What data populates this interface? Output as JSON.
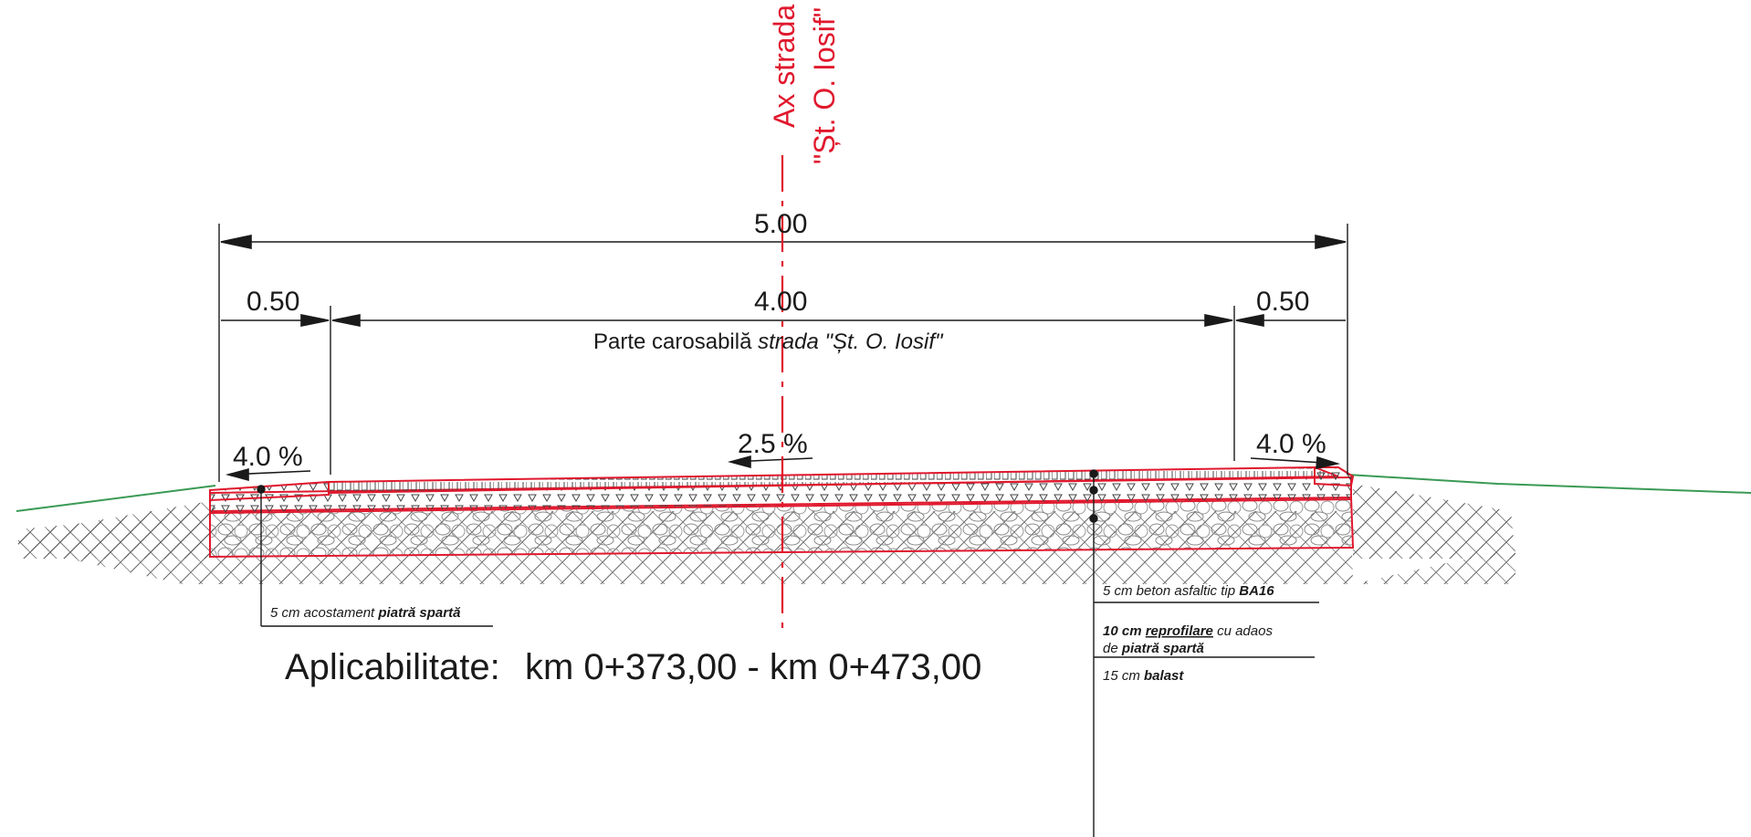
{
  "axis_label": {
    "line1": "Ax strada",
    "line2": "\"Șt. O. Iosif\""
  },
  "dimensions": {
    "total_width": "5.00",
    "left_shoulder": "0.50",
    "carriageway": "4.00",
    "right_shoulder": "0.50",
    "carriageway_label_prefix": "Parte carosabilă ",
    "carriageway_label_street": "strada \"Șt. O. Iosif\""
  },
  "slopes": {
    "left": "4.0 %",
    "center": "2.5 %",
    "right": "4.0 %"
  },
  "layers": {
    "shoulder_note": {
      "prefix": "5 cm acostament ",
      "material": "piatră spartă"
    },
    "wearing_course": {
      "prefix": "5 cm beton asfaltic tip ",
      "material": "BA16"
    },
    "reprofiling": {
      "prefix": "10 cm ",
      "material": "reprofilare",
      "suffix": " cu adaos",
      "line2_prefix": "de ",
      "line2_material": "piatră spartă"
    },
    "ballast": {
      "prefix": "15 cm ",
      "material": "balast"
    }
  },
  "applicability": {
    "label": "Aplicabilitate:",
    "range": "km 0+373,00 - km 0+473,00"
  },
  "colors": {
    "axis": "#e0182d",
    "layer_outline": "#e0182d",
    "terrain": "#3a9a55",
    "ink": "#1a1a1a"
  }
}
